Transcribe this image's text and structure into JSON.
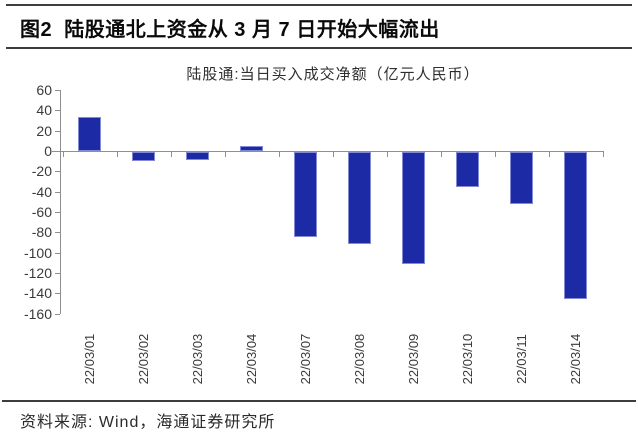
{
  "figure": {
    "title": "图2  陆股通北上资金从 3 月 7 日开始大幅流出",
    "source": "资料来源: Wind，海通证券研究所"
  },
  "chart_data": {
    "type": "bar",
    "title": "陆股通:当日买入成交净额（亿元人民币）",
    "categories": [
      "22/03/01",
      "22/03/02",
      "22/03/03",
      "22/03/04",
      "22/03/07",
      "22/03/08",
      "22/03/09",
      "22/03/10",
      "22/03/11",
      "22/03/14"
    ],
    "values": [
      33,
      -9,
      -8,
      5,
      -84,
      -90,
      -110,
      -34,
      -51,
      -145
    ],
    "xlabel": "",
    "ylabel": "",
    "ylim": [
      -160,
      60
    ],
    "yticks": [
      60,
      40,
      20,
      0,
      -20,
      -40,
      -60,
      -80,
      -100,
      -120,
      -140,
      -160
    ],
    "grid": false,
    "legend_position": "none",
    "bar_color": "#1c2aa5",
    "axis_color": "#8f8f8f",
    "text_color": "#3a3a3a"
  }
}
